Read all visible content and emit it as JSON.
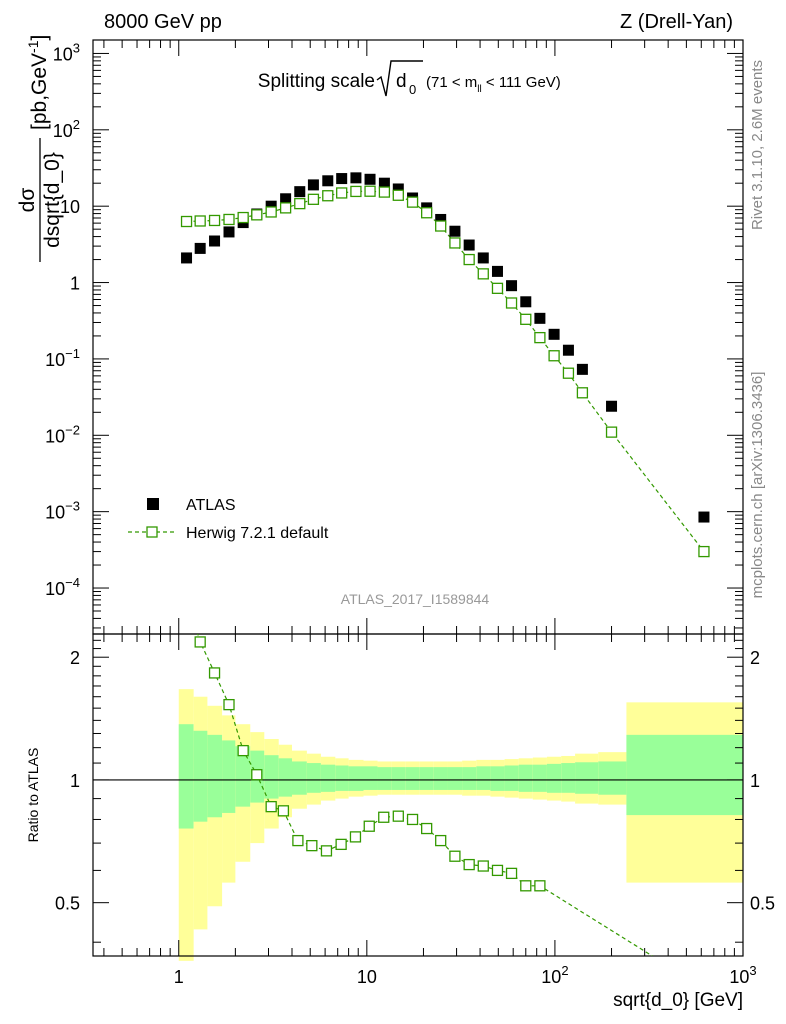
{
  "header": {
    "left": "8000 GeV pp",
    "right": "Z (Drell-Yan)"
  },
  "side_labels": {
    "rivet": "Rivet 3.1.10,  2.6M events",
    "mcplots": "mcplots.cern.ch [arXiv:1306.3436]"
  },
  "chart_data": {
    "type": "scatter",
    "title_main": "Splitting scale",
    "title_sqrt": "d",
    "title_sub": "0",
    "title_cut": "(71 < m",
    "title_cut_sub": "ll",
    "title_cut_end": " < 111 GeV)",
    "watermark": "ATLAS_2017_I1589844",
    "xlabel": "sqrt{d_0} [GeV]",
    "ylabel_num": "dσ",
    "ylabel_den": "dsqrt{d_0}",
    "ylabel_unit": "[pb,GeV",
    "ylabel_unit_sup": "-1",
    "ylabel_unit_end": "]",
    "ratio_ylabel": "Ratio to ATLAS",
    "xscale": "log",
    "yscale": "log",
    "xlim": [
      0.35,
      1000
    ],
    "ylim": [
      2.5e-05,
      1500
    ],
    "ratio_ylim": [
      0.37,
      2.28
    ],
    "x_ticks": [
      {
        "v": 1,
        "label": "1"
      },
      {
        "v": 10,
        "label": "10"
      },
      {
        "v": 100,
        "label": "10",
        "sup": "2"
      },
      {
        "v": 1000,
        "label": "10",
        "sup": "3"
      }
    ],
    "y_ticks": [
      {
        "v": 0.0001,
        "label": "10",
        "sup": "−4"
      },
      {
        "v": 0.001,
        "label": "10",
        "sup": "−3"
      },
      {
        "v": 0.01,
        "label": "10",
        "sup": "−2"
      },
      {
        "v": 0.1,
        "label": "10",
        "sup": "−1"
      },
      {
        "v": 1,
        "label": "1",
        "sup": ""
      },
      {
        "v": 10,
        "label": "10",
        "sup": ""
      },
      {
        "v": 100,
        "label": "10",
        "sup": "2"
      },
      {
        "v": 1000,
        "label": "10",
        "sup": "3"
      }
    ],
    "ratio_ticks": [
      {
        "v": 0.5,
        "label": "0.5"
      },
      {
        "v": 1,
        "label": "1"
      },
      {
        "v": 2,
        "label": "2"
      }
    ],
    "legend": {
      "position": "bottom-left",
      "atlas": "ATLAS",
      "herwig": "Herwig 7.2.1 default"
    },
    "colors": {
      "atlas": "#000000",
      "herwig": "#339900",
      "band_inner": "#99ff99",
      "band_outer": "#ffff99"
    },
    "x": [
      1.1,
      1.3,
      1.55,
      1.85,
      2.2,
      2.6,
      3.1,
      3.7,
      4.4,
      5.2,
      6.2,
      7.35,
      8.75,
      10.4,
      12.4,
      14.7,
      17.5,
      20.8,
      24.7,
      29.4,
      35.0,
      41.6,
      49.5,
      58.8,
      70.0,
      83.2,
      99.0,
      118,
      140,
      200,
      620
    ],
    "atlas": [
      2.1,
      2.8,
      3.5,
      4.6,
      6.1,
      7.9,
      10.0,
      12.5,
      15.5,
      19.0,
      21.5,
      23.0,
      23.5,
      22.5,
      20.0,
      16.8,
      12.8,
      9.5,
      6.7,
      4.7,
      3.1,
      2.1,
      1.4,
      0.91,
      0.56,
      0.34,
      0.21,
      0.13,
      0.073,
      0.024,
      0.00085
    ],
    "herwig": [
      6.3,
      6.4,
      6.5,
      6.7,
      7.1,
      7.7,
      8.4,
      9.5,
      10.8,
      12.3,
      13.7,
      14.9,
      15.6,
      15.7,
      15.3,
      13.9,
      11.3,
      8.2,
      5.5,
      3.3,
      2.0,
      1.3,
      0.84,
      0.54,
      0.33,
      0.19,
      0.11,
      0.065,
      0.036,
      0.011,
      0.0003
    ],
    "ratio": [
      {
        "x": 1.3,
        "y": 2.18
      },
      {
        "x": 1.55,
        "y": 1.83
      },
      {
        "x": 1.85,
        "y": 1.53
      },
      {
        "x": 2.2,
        "y": 1.18
      },
      {
        "x": 2.6,
        "y": 1.03
      },
      {
        "x": 3.1,
        "y": 0.86
      },
      {
        "x": 3.6,
        "y": 0.84
      },
      {
        "x": 4.3,
        "y": 0.71
      },
      {
        "x": 5.1,
        "y": 0.69
      },
      {
        "x": 6.1,
        "y": 0.67
      },
      {
        "x": 7.3,
        "y": 0.695
      },
      {
        "x": 8.7,
        "y": 0.725
      },
      {
        "x": 10.3,
        "y": 0.77
      },
      {
        "x": 12.3,
        "y": 0.81
      },
      {
        "x": 14.7,
        "y": 0.815
      },
      {
        "x": 17.5,
        "y": 0.8
      },
      {
        "x": 20.8,
        "y": 0.76
      },
      {
        "x": 24.7,
        "y": 0.71
      },
      {
        "x": 29.4,
        "y": 0.65
      },
      {
        "x": 35.0,
        "y": 0.62
      },
      {
        "x": 41.6,
        "y": 0.615
      },
      {
        "x": 49.5,
        "y": 0.6
      },
      {
        "x": 58.8,
        "y": 0.59
      },
      {
        "x": 70.0,
        "y": 0.55
      },
      {
        "x": 83.2,
        "y": 0.55
      },
      {
        "x": 330,
        "y": 0.37
      }
    ],
    "bands": [
      {
        "x0": 1.0,
        "x1": 1.2,
        "i0": 0.76,
        "i1": 1.37,
        "o0": 0.36,
        "o1": 1.67
      },
      {
        "x0": 1.2,
        "x1": 1.42,
        "i0": 0.79,
        "i1": 1.32,
        "o0": 0.43,
        "o1": 1.6
      },
      {
        "x0": 1.42,
        "x1": 1.7,
        "i0": 0.81,
        "i1": 1.29,
        "o0": 0.49,
        "o1": 1.52
      },
      {
        "x0": 1.7,
        "x1": 2.0,
        "i0": 0.83,
        "i1": 1.25,
        "o0": 0.56,
        "o1": 1.44
      },
      {
        "x0": 2.0,
        "x1": 2.4,
        "i0": 0.86,
        "i1": 1.21,
        "o0": 0.63,
        "o1": 1.37
      },
      {
        "x0": 2.4,
        "x1": 2.85,
        "i0": 0.88,
        "i1": 1.18,
        "o0": 0.7,
        "o1": 1.31
      },
      {
        "x0": 2.85,
        "x1": 3.4,
        "i0": 0.9,
        "i1": 1.15,
        "o0": 0.76,
        "o1": 1.26
      },
      {
        "x0": 3.4,
        "x1": 4.0,
        "i0": 0.91,
        "i1": 1.13,
        "o0": 0.81,
        "o1": 1.22
      },
      {
        "x0": 4.0,
        "x1": 4.8,
        "i0": 0.92,
        "i1": 1.11,
        "o0": 0.85,
        "o1": 1.18
      },
      {
        "x0": 4.8,
        "x1": 5.7,
        "i0": 0.93,
        "i1": 1.1,
        "o0": 0.87,
        "o1": 1.16
      },
      {
        "x0": 5.7,
        "x1": 6.8,
        "i0": 0.935,
        "i1": 1.09,
        "o0": 0.89,
        "o1": 1.14
      },
      {
        "x0": 6.8,
        "x1": 8.0,
        "i0": 0.94,
        "i1": 1.085,
        "o0": 0.9,
        "o1": 1.13
      },
      {
        "x0": 8.0,
        "x1": 9.6,
        "i0": 0.94,
        "i1": 1.08,
        "o0": 0.91,
        "o1": 1.12
      },
      {
        "x0": 9.6,
        "x1": 11.4,
        "i0": 0.945,
        "i1": 1.08,
        "o0": 0.915,
        "o1": 1.115
      },
      {
        "x0": 11.4,
        "x1": 13.5,
        "i0": 0.945,
        "i1": 1.075,
        "o0": 0.92,
        "o1": 1.11
      },
      {
        "x0": 13.5,
        "x1": 16.1,
        "i0": 0.945,
        "i1": 1.075,
        "o0": 0.92,
        "o1": 1.11
      },
      {
        "x0": 16.1,
        "x1": 19.1,
        "i0": 0.945,
        "i1": 1.075,
        "o0": 0.92,
        "o1": 1.11
      },
      {
        "x0": 19.1,
        "x1": 22.7,
        "i0": 0.945,
        "i1": 1.075,
        "o0": 0.92,
        "o1": 1.11
      },
      {
        "x0": 22.7,
        "x1": 27.0,
        "i0": 0.945,
        "i1": 1.075,
        "o0": 0.92,
        "o1": 1.11
      },
      {
        "x0": 27.0,
        "x1": 32.1,
        "i0": 0.945,
        "i1": 1.075,
        "o0": 0.92,
        "o1": 1.11
      },
      {
        "x0": 32.1,
        "x1": 38.2,
        "i0": 0.945,
        "i1": 1.075,
        "o0": 0.915,
        "o1": 1.115
      },
      {
        "x0": 38.2,
        "x1": 45.4,
        "i0": 0.945,
        "i1": 1.08,
        "o0": 0.915,
        "o1": 1.12
      },
      {
        "x0": 45.4,
        "x1": 54.0,
        "i0": 0.94,
        "i1": 1.08,
        "o0": 0.91,
        "o1": 1.12
      },
      {
        "x0": 54.0,
        "x1": 64.2,
        "i0": 0.94,
        "i1": 1.085,
        "o0": 0.905,
        "o1": 1.125
      },
      {
        "x0": 64.2,
        "x1": 76.3,
        "i0": 0.935,
        "i1": 1.09,
        "o0": 0.9,
        "o1": 1.13
      },
      {
        "x0": 76.3,
        "x1": 90.7,
        "i0": 0.935,
        "i1": 1.09,
        "o0": 0.895,
        "o1": 1.135
      },
      {
        "x0": 90.7,
        "x1": 108,
        "i0": 0.93,
        "i1": 1.095,
        "o0": 0.89,
        "o1": 1.14
      },
      {
        "x0": 108,
        "x1": 128,
        "i0": 0.93,
        "i1": 1.1,
        "o0": 0.885,
        "o1": 1.145
      },
      {
        "x0": 128,
        "x1": 170,
        "i0": 0.925,
        "i1": 1.105,
        "o0": 0.875,
        "o1": 1.16
      },
      {
        "x0": 170,
        "x1": 240,
        "i0": 0.92,
        "i1": 1.11,
        "o0": 0.87,
        "o1": 1.17
      },
      {
        "x0": 240,
        "x1": 1000,
        "i0": 0.82,
        "i1": 1.29,
        "o0": 0.56,
        "o1": 1.55
      }
    ]
  }
}
